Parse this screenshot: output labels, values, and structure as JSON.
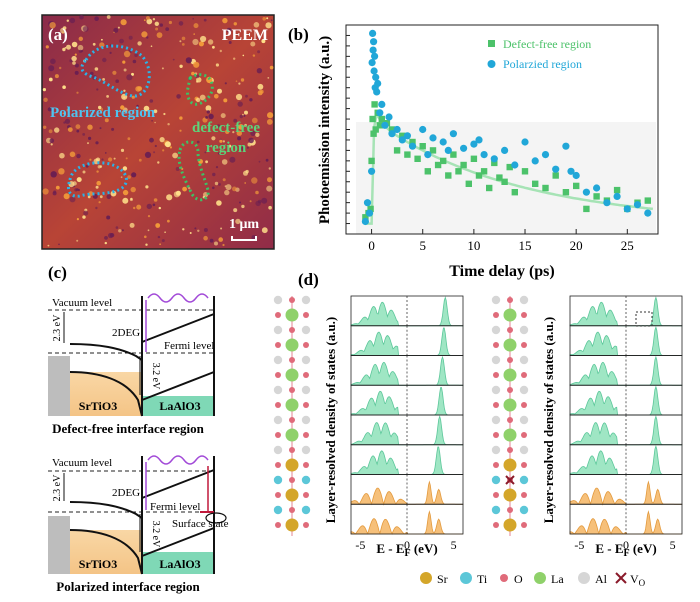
{
  "panel_a": {
    "label": "(a)",
    "title": "PEEM",
    "polarized_label": "Polarized region",
    "defect_label_1": "defect-free",
    "defect_label_2": "region",
    "scale_bar": "1 μm"
  },
  "panel_b": {
    "label": "(b)",
    "colors": {
      "defect_free": "#4cc26a",
      "polarized": "#21a7d8",
      "fit": "#a6e3b5"
    },
    "chart_data": {
      "type": "scatter",
      "xlabel": "Time delay (ps)",
      "ylabel": "Photoemission intensity (a.u.)",
      "xlim": [
        -2.5,
        28
      ],
      "ylim": [
        0,
        1
      ],
      "xticks": [
        0,
        5,
        10,
        15,
        20,
        25
      ],
      "legend_position": "top-right",
      "series": [
        {
          "name": "Defect-free region",
          "marker": "square",
          "x": [
            -0.6,
            -0.3,
            -0.1,
            0,
            0.1,
            0.2,
            0.3,
            0.4,
            0.6,
            0.8,
            1.0,
            1.5,
            2,
            2.5,
            3,
            3.5,
            4,
            4.5,
            5,
            5.5,
            6,
            6.5,
            7,
            7.5,
            8,
            8.5,
            9,
            9.5,
            10,
            10.5,
            11,
            11.5,
            12,
            12.5,
            13,
            13.5,
            14,
            15,
            16,
            17,
            18,
            19,
            20,
            21,
            22,
            23,
            24,
            25,
            26,
            27
          ],
          "y": [
            0.08,
            0.1,
            0.12,
            0.35,
            0.55,
            0.48,
            0.62,
            0.5,
            0.58,
            0.52,
            0.55,
            0.53,
            0.5,
            0.4,
            0.47,
            0.38,
            0.44,
            0.36,
            0.42,
            0.3,
            0.4,
            0.33,
            0.35,
            0.28,
            0.38,
            0.3,
            0.33,
            0.24,
            0.36,
            0.28,
            0.3,
            0.22,
            0.34,
            0.27,
            0.25,
            0.32,
            0.2,
            0.3,
            0.24,
            0.22,
            0.28,
            0.2,
            0.23,
            0.12,
            0.18,
            0.16,
            0.21,
            0.12,
            0.15,
            0.16
          ]
        },
        {
          "name": "Polarzied region",
          "marker": "circle",
          "x": [
            -0.6,
            -0.4,
            -0.2,
            0,
            0.05,
            0.1,
            0.15,
            0.2,
            0.25,
            0.3,
            0.35,
            0.4,
            0.5,
            0.6,
            0.8,
            1.0,
            1.3,
            1.7,
            2,
            2.5,
            3,
            3.5,
            4,
            5,
            5.5,
            6,
            7,
            7.5,
            8,
            9,
            10,
            10.5,
            11,
            12,
            13,
            14,
            15,
            16,
            17,
            18,
            19,
            19.5,
            20,
            21,
            22,
            23,
            24,
            25,
            26,
            27
          ],
          "y": [
            0.06,
            0.15,
            0.1,
            0.3,
            0.82,
            0.96,
            0.88,
            0.92,
            0.78,
            0.85,
            0.7,
            0.75,
            0.68,
            0.72,
            0.58,
            0.62,
            0.52,
            0.56,
            0.48,
            0.5,
            0.45,
            0.47,
            0.42,
            0.5,
            0.38,
            0.46,
            0.44,
            0.4,
            0.48,
            0.41,
            0.43,
            0.45,
            0.38,
            0.36,
            0.4,
            0.33,
            0.44,
            0.35,
            0.38,
            0.31,
            0.42,
            0.3,
            0.28,
            0.2,
            0.22,
            0.15,
            0.18,
            0.12,
            0.14,
            0.1
          ]
        }
      ]
    }
  },
  "panel_c": {
    "label": "(c)",
    "vacuum_level": "Vacuum level",
    "gap_2_3": "2.3 eV",
    "gap_3_2": "3.2 eV",
    "two_deg": "2DEG",
    "fermi_level": "Fermi level",
    "srtio3": "SrTiO3",
    "laalo3": "LaAlO3",
    "surface_state": "Surface state",
    "caption_top": "Defect-free interface region",
    "caption_bottom": "Polarized interface region"
  },
  "panel_d": {
    "label": "(d)",
    "ylabel": "Layer-resolved density of states (a.u.)",
    "xlabel": "E - E",
    "xlabel_sub": "F",
    "xlabel_unit": " (eV)",
    "xticks": [
      "-5",
      "0",
      "5"
    ],
    "legend": {
      "sr": "Sr",
      "ti": "Ti",
      "o": "O",
      "la": "La",
      "al": "Al",
      "vo": "V",
      "vo_sub": "O"
    },
    "colors": {
      "sr": "#d4a62a",
      "ti": "#5cc7d8",
      "o": "#e06b7a",
      "la": "#8fd16a",
      "al": "#d6d6d6",
      "green_fill": "#9fe6c4",
      "orange_fill": "#f6c07a"
    }
  }
}
